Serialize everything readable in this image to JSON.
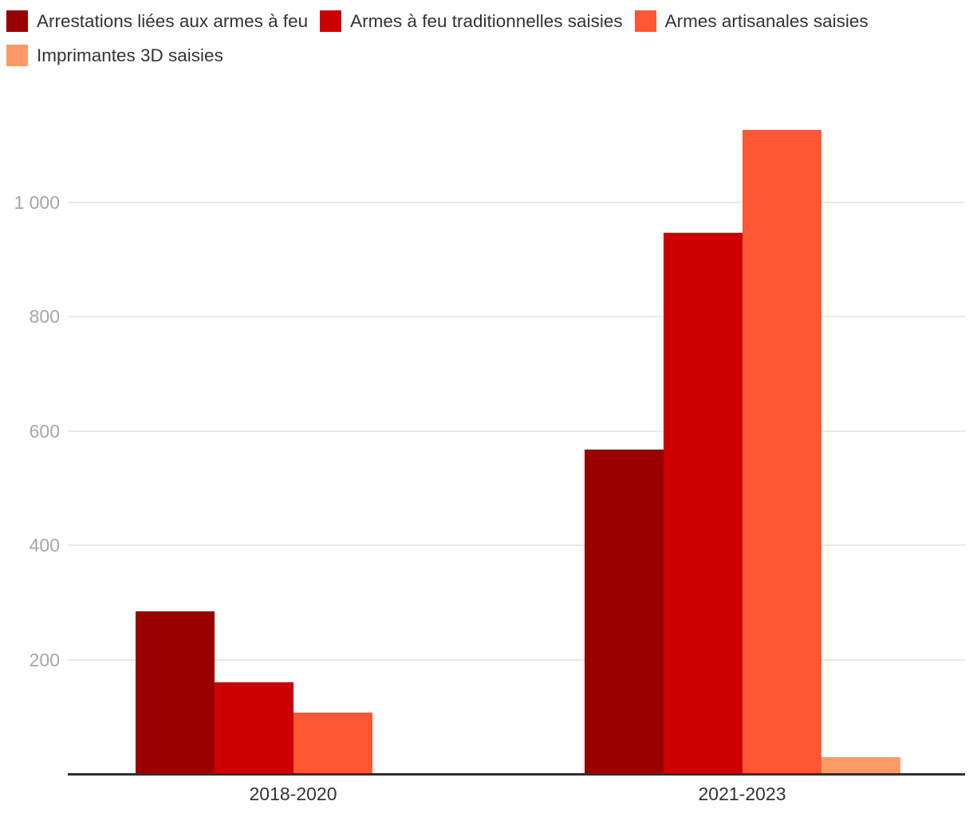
{
  "chart_data": {
    "type": "bar",
    "title": "",
    "xlabel": "",
    "ylabel": "",
    "categories": [
      "2018-2020",
      "2021-2023"
    ],
    "series": [
      {
        "name": "Arrestations liées aux armes à feu",
        "color": "#990000",
        "values": [
          284,
          567
        ]
      },
      {
        "name": "Armes à feu traditionnelles saisies",
        "color": "#CC0000",
        "values": [
          160,
          947
        ]
      },
      {
        "name": "Armes artisanales saisies",
        "color": "#FF5733",
        "values": [
          108,
          1126
        ]
      },
      {
        "name": "Imprimantes 3D saisies",
        "color": "#FF9966",
        "values": [
          0,
          29
        ]
      }
    ],
    "yticks": [
      {
        "value": 200,
        "label": "200"
      },
      {
        "value": 400,
        "label": "400"
      },
      {
        "value": 600,
        "label": "600"
      },
      {
        "value": 800,
        "label": "800"
      },
      {
        "value": 1000,
        "label": "1 000"
      }
    ],
    "ylim": [
      0,
      1160
    ],
    "grid": true,
    "legend_position": "top-left"
  },
  "colors": {
    "background": "#ffffff",
    "axis": "#2f2f2f",
    "gridline": "#e9e9e9",
    "tick_label": "#a6a6a6",
    "category_label": "#333333",
    "legend_text": "#333333"
  }
}
